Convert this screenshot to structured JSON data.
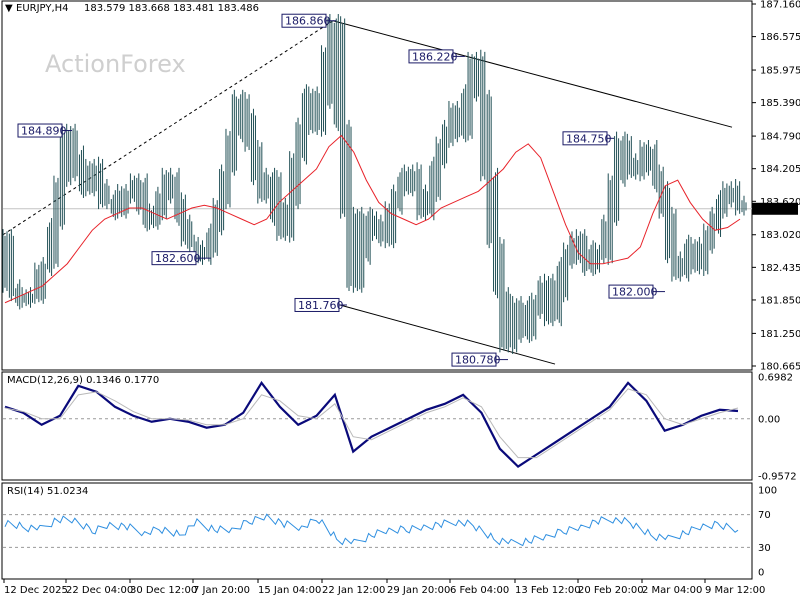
{
  "watermark": "ActionForex",
  "colors": {
    "bars": "#1f4e54",
    "ma": "#e8232a",
    "macd": "#0a0a7a",
    "signal": "#b9b9b9",
    "rsi": "#2f8fe0",
    "trendline": "#000000",
    "label_border": "#1a1a66",
    "current_price_bg": "#000000",
    "current_price_text": "#ffffff"
  },
  "chart_data": [
    {
      "type": "bar",
      "panel": "price",
      "title": "EURJPY,H4",
      "ohlc_header": "183.579 183.668 183.481 183.486",
      "current_price": "183.486",
      "y_ticks": [
        "187.160",
        "186.575",
        "185.975",
        "185.390",
        "184.790",
        "184.205",
        "183.620",
        "183.020",
        "182.435",
        "181.850",
        "181.250",
        "180.665"
      ],
      "ylim": [
        180.665,
        187.16
      ],
      "x_ticks": [
        "12 Dec 2025",
        "22 Dec 04:00",
        "30 Dec 12:00",
        "7 Jan 20:00",
        "15 Jan 04:00",
        "22 Jan 12:00",
        "29 Jan 20:00",
        "6 Feb 04:00",
        "13 Feb 12:00",
        "20 Feb 20:00",
        "2 Mar 04:00",
        "9 Mar 12:00"
      ],
      "annotations": [
        {
          "text": "186.860",
          "value": 186.86
        },
        {
          "text": "184.890",
          "value": 184.89
        },
        {
          "text": "182.600",
          "value": 182.6
        },
        {
          "text": "186.220",
          "value": 186.22
        },
        {
          "text": "181.760",
          "value": 181.76
        },
        {
          "text": "180.780",
          "value": 180.78
        },
        {
          "text": "184.750",
          "value": 184.75
        },
        {
          "text": "182.000",
          "value": 182.0
        }
      ],
      "series": [
        {
          "name": "price",
          "values": [
            183.0,
            182.1,
            181.95,
            181.8,
            182.0,
            181.9,
            182.4,
            182.5,
            183.2,
            184.0,
            184.89,
            184.5,
            184.1,
            183.8,
            184.3,
            183.9,
            183.6,
            183.7,
            183.4,
            183.85,
            183.7,
            184.0,
            183.5,
            183.2,
            183.4,
            183.8,
            184.1,
            183.7,
            183.3,
            182.9,
            182.8,
            182.6,
            182.7,
            183.1,
            183.6,
            184.2,
            184.8,
            185.5,
            185.2,
            184.6,
            184.0,
            183.7,
            184.1,
            183.3,
            183.0,
            183.6,
            184.4,
            185.0,
            185.6,
            184.9,
            185.4,
            186.3,
            186.86,
            185.0,
            183.4,
            182.1,
            182.6,
            183.4,
            183.0,
            183.3,
            182.9,
            183.5,
            183.8,
            184.1,
            184.2,
            183.8,
            183.4,
            183.7,
            184.3,
            184.7,
            185.0,
            185.3,
            184.8,
            185.6,
            186.22,
            185.5,
            184.1,
            182.9,
            182.0,
            181.0,
            181.4,
            181.8,
            181.2,
            181.6,
            181.9,
            182.2,
            181.5,
            181.9,
            182.5,
            182.8,
            183.0,
            182.6,
            182.4,
            182.8,
            182.6,
            183.3,
            184.0,
            184.75,
            184.4,
            184.1,
            184.4,
            184.6,
            184.2,
            183.9,
            183.4,
            182.6,
            182.3,
            182.5,
            182.9,
            182.4,
            182.8,
            183.1,
            183.4,
            183.7,
            183.9,
            183.6,
            183.486
          ]
        },
        {
          "name": "ma",
          "values": [
            181.8,
            181.9,
            182.0,
            182.1,
            182.3,
            182.5,
            182.8,
            183.1,
            183.3,
            183.4,
            183.5,
            183.5,
            183.4,
            183.3,
            183.4,
            183.5,
            183.55,
            183.5,
            183.4,
            183.3,
            183.2,
            183.3,
            183.6,
            183.8,
            184.0,
            184.2,
            184.6,
            184.8,
            184.5,
            184.0,
            183.6,
            183.4,
            183.3,
            183.2,
            183.3,
            183.5,
            183.6,
            183.7,
            183.8,
            184.0,
            184.2,
            184.5,
            184.65,
            184.4,
            183.8,
            183.2,
            182.7,
            182.5,
            182.5,
            182.55,
            182.6,
            182.8,
            183.4,
            183.9,
            184.0,
            183.6,
            183.3,
            183.1,
            183.15,
            183.3
          ]
        }
      ]
    },
    {
      "type": "line",
      "panel": "macd",
      "title": "MACD(12,26,9) 0.1346 0.1770",
      "y_ticks": [
        "0.6982",
        "0.00",
        "-0.9572"
      ],
      "ylim": [
        -0.9572,
        0.6982
      ],
      "series": [
        {
          "name": "macd",
          "values": [
            0.2,
            0.1,
            -0.1,
            0.05,
            0.55,
            0.45,
            0.2,
            0.05,
            -0.05,
            0.0,
            -0.05,
            -0.15,
            -0.1,
            0.1,
            0.6,
            0.2,
            -0.1,
            0.05,
            0.4,
            -0.55,
            -0.3,
            -0.15,
            0.0,
            0.15,
            0.25,
            0.4,
            0.1,
            -0.5,
            -0.8,
            -0.6,
            -0.4,
            -0.2,
            0.0,
            0.2,
            0.6,
            0.3,
            -0.2,
            -0.1,
            0.05,
            0.15,
            0.13
          ]
        },
        {
          "name": "signal",
          "values": [
            0.18,
            0.12,
            0.0,
            0.0,
            0.4,
            0.45,
            0.3,
            0.12,
            0.0,
            0.0,
            -0.02,
            -0.1,
            -0.1,
            0.0,
            0.4,
            0.3,
            0.05,
            0.0,
            0.25,
            -0.3,
            -0.35,
            -0.2,
            -0.05,
            0.1,
            0.2,
            0.35,
            0.2,
            -0.3,
            -0.65,
            -0.65,
            -0.45,
            -0.25,
            -0.05,
            0.15,
            0.5,
            0.4,
            0.0,
            -0.1,
            0.0,
            0.1,
            0.18
          ]
        }
      ]
    },
    {
      "type": "line",
      "panel": "rsi",
      "title": "RSI(14) 51.0234",
      "y_ticks": [
        "100",
        "70",
        "30",
        "0"
      ],
      "ylim": [
        0,
        100
      ],
      "series": [
        {
          "name": "rsi",
          "values": [
            60,
            55,
            52,
            64,
            62,
            50,
            58,
            55,
            48,
            52,
            45,
            60,
            52,
            50,
            62,
            68,
            58,
            55,
            64,
            40,
            35,
            45,
            50,
            52,
            55,
            58,
            62,
            55,
            40,
            35,
            38,
            42,
            50,
            55,
            62,
            65,
            58,
            45,
            40,
            48,
            55,
            58,
            51
          ]
        }
      ]
    }
  ]
}
